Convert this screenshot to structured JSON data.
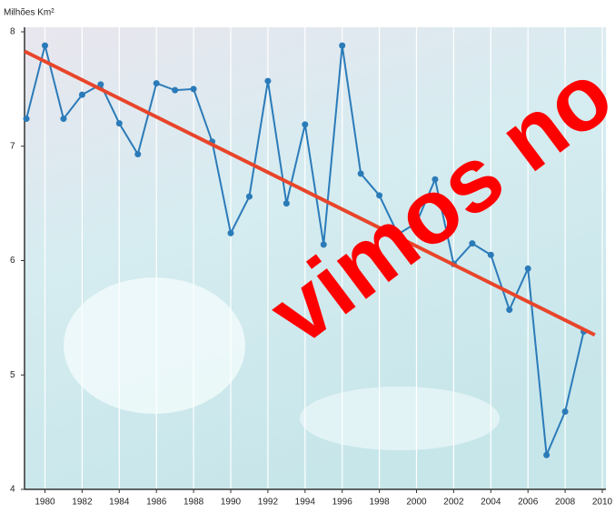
{
  "chart_data": {
    "type": "line",
    "y_label": "Milhões Km²",
    "x": [
      1979,
      1980,
      1981,
      1982,
      1983,
      1984,
      1985,
      1986,
      1987,
      1988,
      1989,
      1990,
      1991,
      1992,
      1993,
      1994,
      1995,
      1996,
      1997,
      1998,
      1999,
      2000,
      2001,
      2002,
      2003,
      2004,
      2005,
      2006,
      2007,
      2008,
      2009
    ],
    "series": [
      {
        "color": "#2b7bb9",
        "values": [
          7.24,
          7.88,
          7.24,
          7.45,
          7.54,
          7.2,
          6.93,
          7.55,
          7.49,
          7.5,
          7.04,
          6.24,
          6.56,
          7.57,
          6.5,
          7.19,
          6.14,
          7.88,
          6.76,
          6.57,
          6.23,
          6.33,
          6.71,
          5.97,
          6.15,
          6.05,
          5.57,
          5.93,
          4.3,
          4.68,
          5.38
        ]
      }
    ],
    "trend": {
      "color": "#e8452a",
      "x": [
        1978.9,
        2009.6
      ],
      "values": [
        7.83,
        5.35
      ]
    },
    "xlim": [
      1978.9,
      2010
    ],
    "ylim": [
      4,
      8
    ],
    "xticks": [
      1980,
      1982,
      1984,
      1986,
      1988,
      1990,
      1992,
      1994,
      1996,
      1998,
      2000,
      2002,
      2004,
      2006,
      2008,
      2010
    ],
    "yticks": [
      4,
      5,
      6,
      7,
      8
    ],
    "grid": true,
    "annotations": [
      {
        "text": "vimos no",
        "color": "#ff0000"
      }
    ]
  }
}
